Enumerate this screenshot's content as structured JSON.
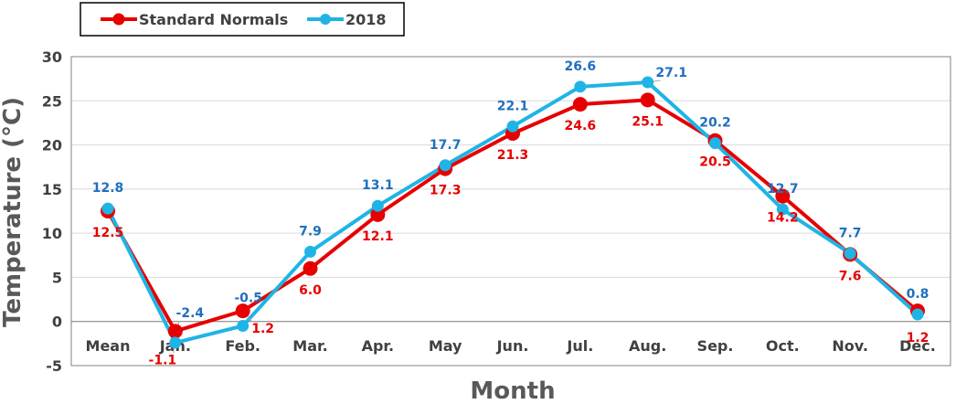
{
  "chart_data": {
    "type": "line",
    "xlabel": "Month",
    "ylabel": "Temperature (°C)",
    "ylim": [
      -5,
      30
    ],
    "yticks": [
      -5,
      0,
      5,
      10,
      15,
      20,
      25,
      30
    ],
    "grid": "horizontal",
    "legend_position": "top-left",
    "categories": [
      "Mean",
      "Jan.",
      "Feb.",
      "Mar.",
      "Apr.",
      "May",
      "Jun.",
      "Jul.",
      "Aug.",
      "Sep.",
      "Oct.",
      "Nov.",
      "Dec."
    ],
    "series": [
      {
        "name": "Standard Normals",
        "color": "#e60000",
        "values": [
          12.5,
          -1.1,
          1.2,
          6.0,
          12.1,
          17.3,
          21.3,
          24.6,
          25.1,
          20.5,
          14.2,
          7.6,
          1.2
        ],
        "labels": [
          "12.5",
          "-1.1",
          "1.2",
          "6.0",
          "12.1",
          "17.3",
          "21.3",
          "24.6",
          "25.1",
          "20.5",
          "14.2",
          "7.6",
          "1.2"
        ]
      },
      {
        "name": "2018",
        "color": "#1fb4e6",
        "label_color": "#1f6fbf",
        "values": [
          12.8,
          -2.4,
          -0.5,
          7.9,
          13.1,
          17.7,
          22.1,
          26.6,
          27.1,
          20.2,
          12.7,
          7.7,
          0.8
        ],
        "labels": [
          "12.8",
          "-2.4",
          "-0.5",
          "7.9",
          "13.1",
          "17.7",
          "22.1",
          "26.6",
          "27.1",
          "20.2",
          "12.7",
          "7.7",
          "0.8"
        ]
      }
    ]
  }
}
